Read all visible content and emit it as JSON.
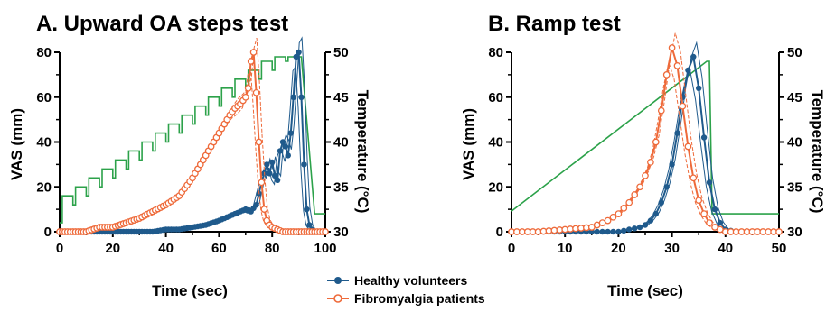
{
  "colors": {
    "healthy": "#1f5a8c",
    "fibro": "#ee6a3a",
    "temperature": "#2ca24a",
    "axis": "#000000"
  },
  "legend": {
    "healthy_label": "Healthy volunteers",
    "fibro_label": "Fibromyalgia patients"
  },
  "chart_data": [
    {
      "type": "line",
      "title": "A. Upward OA steps test",
      "xlabel": "Time (sec)",
      "ylabel": "VAS (mm)",
      "y2label": "Temperature (°C)",
      "xlim": [
        0,
        100
      ],
      "ylim": [
        0,
        80
      ],
      "y2lim": [
        30,
        50
      ],
      "xticks": [
        "0",
        "20",
        "40",
        "60",
        "80",
        "100"
      ],
      "yticks": [
        "0",
        "20",
        "40",
        "60",
        "80"
      ],
      "y2ticks": [
        "30",
        "35",
        "40",
        "45",
        "50"
      ],
      "series": [
        {
          "name": "Healthy volunteers",
          "x": [
            0,
            5,
            10,
            15,
            20,
            25,
            30,
            35,
            40,
            45,
            50,
            55,
            60,
            62,
            64,
            66,
            68,
            70,
            72,
            74,
            76,
            78,
            79,
            80,
            81,
            82,
            83,
            84,
            85,
            86,
            87,
            88,
            89,
            90,
            91,
            92,
            93,
            94,
            95,
            96,
            98,
            100
          ],
          "y": [
            0,
            0,
            0,
            0,
            0,
            0,
            0,
            0,
            1,
            1,
            2,
            3,
            5,
            6,
            7,
            8,
            9,
            10,
            9,
            12,
            22,
            30,
            26,
            31,
            25,
            23,
            36,
            40,
            38,
            34,
            44,
            60,
            78,
            80,
            60,
            30,
            10,
            3,
            1,
            0,
            0,
            0
          ]
        },
        {
          "name": "Fibromyalgia patients",
          "x": [
            0,
            5,
            10,
            15,
            20,
            25,
            30,
            35,
            40,
            45,
            50,
            55,
            60,
            62,
            64,
            66,
            68,
            70,
            71,
            72,
            73,
            74,
            75,
            76,
            77,
            78,
            79,
            80,
            82,
            84,
            86,
            88,
            90
          ],
          "y": [
            0,
            0,
            0,
            2,
            2,
            4,
            6,
            9,
            12,
            16,
            24,
            34,
            44,
            48,
            52,
            55,
            57,
            60,
            64,
            76,
            80,
            62,
            40,
            22,
            10,
            5,
            3,
            2,
            1,
            0,
            0,
            0,
            0
          ]
        },
        {
          "name": "",
          "axis": "right",
          "x": [
            0,
            1,
            1,
            5,
            5,
            6,
            6,
            10,
            10,
            11,
            11,
            15,
            15,
            16,
            16,
            20,
            20,
            21,
            21,
            25,
            25,
            26,
            26,
            30,
            30,
            31,
            31,
            35,
            35,
            36,
            36,
            40,
            40,
            41,
            41,
            45,
            45,
            46,
            46,
            50,
            50,
            51,
            51,
            55,
            55,
            56,
            56,
            60,
            60,
            61,
            61,
            65,
            65,
            66,
            66,
            70,
            70,
            71,
            71,
            75,
            75,
            76,
            76,
            80,
            80,
            81,
            81,
            85,
            85,
            86,
            86,
            91,
            91,
            96,
            96,
            100
          ],
          "y": [
            31,
            31,
            34,
            34,
            33,
            33,
            35,
            35,
            34,
            34,
            36,
            36,
            35,
            35,
            37,
            37,
            36,
            36,
            38,
            38,
            37,
            37,
            39,
            39,
            38,
            38,
            40,
            40,
            39,
            39,
            41,
            41,
            40,
            40,
            42,
            42,
            41,
            41,
            43,
            43,
            42,
            42,
            44,
            44,
            43,
            43,
            45,
            45,
            44,
            44,
            46,
            46,
            45,
            45,
            47,
            47,
            46,
            46,
            48,
            48,
            47,
            47,
            49,
            49,
            48,
            48,
            49.5,
            49.5,
            49,
            49,
            49.5,
            49.5,
            49.5,
            32,
            32,
            32
          ]
        }
      ]
    },
    {
      "type": "line",
      "title": "B. Ramp test",
      "xlabel": "Time (sec)",
      "ylabel": "VAS (mm)",
      "y2label": "Temperature (°C)",
      "xlim": [
        0,
        50
      ],
      "ylim": [
        0,
        80
      ],
      "y2lim": [
        30,
        50
      ],
      "xticks": [
        "0",
        "10",
        "20",
        "30",
        "40",
        "50"
      ],
      "yticks": [
        "0",
        "20",
        "40",
        "60",
        "80"
      ],
      "y2ticks": [
        "30",
        "35",
        "40",
        "45",
        "50"
      ],
      "series": [
        {
          "name": "Healthy volunteers",
          "x": [
            0,
            5,
            10,
            15,
            20,
            22,
            24,
            25,
            26,
            27,
            28,
            29,
            30,
            31,
            32,
            33,
            34,
            35,
            36,
            37,
            38,
            39,
            40,
            42,
            45,
            50
          ],
          "y": [
            0,
            0,
            0,
            0,
            0,
            1,
            2,
            3,
            5,
            8,
            13,
            20,
            30,
            44,
            60,
            72,
            78,
            64,
            42,
            22,
            10,
            4,
            1,
            0,
            0,
            0
          ]
        },
        {
          "name": "Fibromyalgia patients",
          "x": [
            0,
            5,
            10,
            15,
            16,
            18,
            20,
            22,
            24,
            25,
            26,
            27,
            28,
            29,
            30,
            31,
            32,
            33,
            34,
            35,
            36,
            37,
            38,
            39,
            40,
            42,
            45,
            50
          ],
          "y": [
            0,
            0,
            1,
            2,
            3,
            5,
            8,
            13,
            20,
            25,
            31,
            40,
            54,
            70,
            82,
            74,
            56,
            38,
            24,
            14,
            8,
            4,
            2,
            1,
            0,
            0,
            0,
            0
          ]
        },
        {
          "name": "",
          "axis": "right",
          "x": [
            0,
            36.5,
            37,
            37.5,
            50
          ],
          "y": [
            32.3,
            49,
            49,
            32,
            32
          ]
        }
      ]
    }
  ]
}
